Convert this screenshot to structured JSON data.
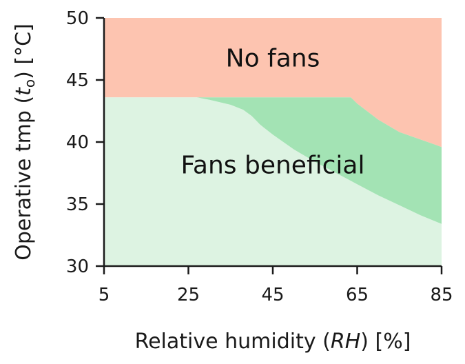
{
  "chart_data": {
    "type": "area",
    "xlabel": {
      "prefix": "Relative humidity (",
      "symbol": "RH",
      "suffix": ") [%]"
    },
    "ylabel": {
      "prefix": "Operative tmp (",
      "symbol": "t",
      "subscript": "o",
      "suffix": ") [°C]"
    },
    "xlim": [
      5,
      85
    ],
    "ylim": [
      30,
      50
    ],
    "x_ticks": [
      5,
      25,
      45,
      65,
      85
    ],
    "y_ticks": [
      30,
      35,
      40,
      45,
      50
    ],
    "grid": false,
    "regions": [
      {
        "key": "no_fans",
        "label": "No fans",
        "color": "#fdc4b0",
        "label_pos": [
          45,
          46.8
        ]
      },
      {
        "key": "fans_beneficial",
        "label": "Fans beneficial",
        "color": "#ddf3e2",
        "label_pos": [
          45,
          38.2
        ]
      },
      {
        "key": "transition",
        "label": "",
        "color": "#a3e3b4"
      }
    ],
    "boundaries": {
      "upper": {
        "x": [
          5,
          10,
          20,
          30,
          40,
          50,
          60,
          63.5,
          65,
          70,
          75,
          80,
          85
        ],
        "y": [
          43.6,
          43.6,
          43.6,
          43.6,
          43.6,
          43.6,
          43.6,
          43.6,
          43.1,
          41.8,
          40.8,
          40.2,
          39.6
        ]
      },
      "lower": {
        "x": [
          5,
          10,
          20,
          27,
          30,
          35,
          38,
          40,
          42,
          45,
          50,
          55,
          60,
          65,
          70,
          75,
          80,
          85
        ],
        "y": [
          43.6,
          43.6,
          43.6,
          43.6,
          43.4,
          43.0,
          42.6,
          42.1,
          41.4,
          40.6,
          39.4,
          38.4,
          37.5,
          36.6,
          35.7,
          34.9,
          34.1,
          33.4
        ]
      }
    }
  }
}
